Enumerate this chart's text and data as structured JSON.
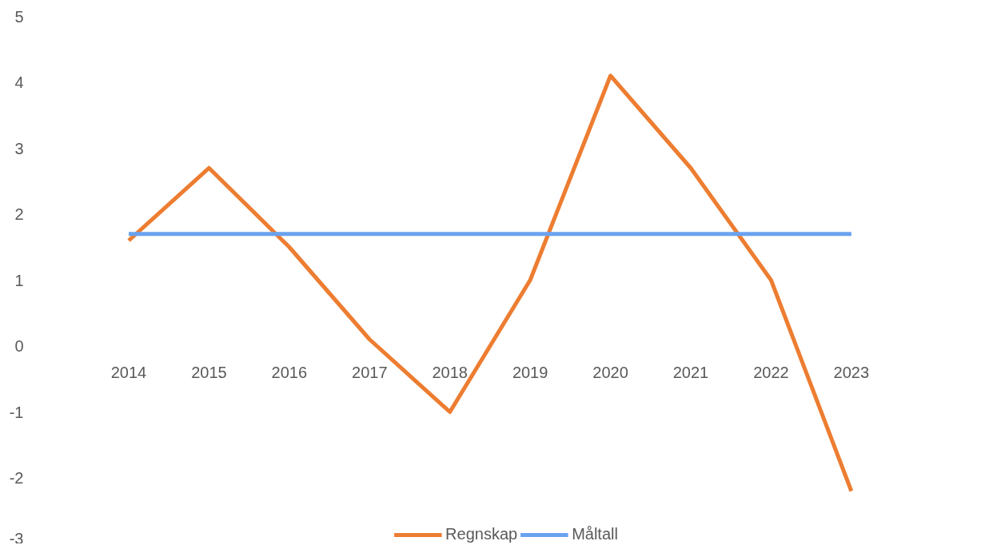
{
  "chart_data": {
    "type": "line",
    "categories": [
      "2014",
      "2015",
      "2016",
      "2017",
      "2018",
      "2019",
      "2020",
      "2021",
      "2022",
      "2023"
    ],
    "series": [
      {
        "name": "Regnskap",
        "color": "#ed7d31",
        "values": [
          1.6,
          2.7,
          1.5,
          0.1,
          -1.0,
          1.0,
          4.1,
          2.7,
          1.0,
          -2.2
        ]
      },
      {
        "name": "Måltall",
        "color": "#6aa2f0",
        "values": [
          1.7,
          1.7,
          1.7,
          1.7,
          1.7,
          1.7,
          1.7,
          1.7,
          1.7,
          1.7
        ]
      }
    ],
    "ylim": [
      -3,
      5
    ],
    "yticks": [
      -3,
      -2,
      -1,
      0,
      1,
      2,
      3,
      4,
      5
    ],
    "grid": false,
    "legend": "bottom",
    "marker": "none",
    "line_style": "solid"
  }
}
